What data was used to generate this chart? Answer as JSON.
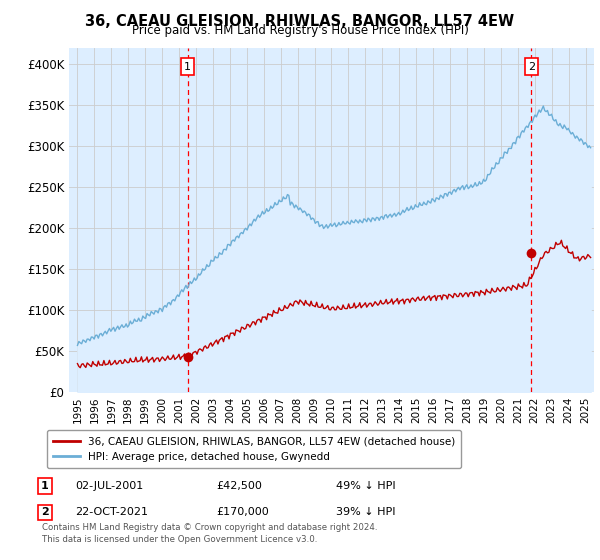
{
  "title": "36, CAEAU GLEISION, RHIWLAS, BANGOR, LL57 4EW",
  "subtitle": "Price paid vs. HM Land Registry's House Price Index (HPI)",
  "ylim": [
    0,
    420000
  ],
  "yticks": [
    0,
    50000,
    100000,
    150000,
    200000,
    250000,
    300000,
    350000,
    400000
  ],
  "ytick_labels": [
    "£0",
    "£50K",
    "£100K",
    "£150K",
    "£200K",
    "£250K",
    "£300K",
    "£350K",
    "£400K"
  ],
  "hpi_color": "#6baed6",
  "hpi_fill_color": "#ddeeff",
  "price_color": "#c00000",
  "vline_color": "#ff0000",
  "background_color": "#ffffff",
  "grid_color": "#cccccc",
  "legend_label_red": "36, CAEAU GLEISION, RHIWLAS, BANGOR, LL57 4EW (detached house)",
  "legend_label_blue": "HPI: Average price, detached house, Gwynedd",
  "annotation1_label": "1",
  "annotation1_date": "02-JUL-2001",
  "annotation1_price": "£42,500",
  "annotation1_pct": "49% ↓ HPI",
  "annotation2_label": "2",
  "annotation2_date": "22-OCT-2021",
  "annotation2_price": "£170,000",
  "annotation2_pct": "39% ↓ HPI",
  "footer": "Contains HM Land Registry data © Crown copyright and database right 2024.\nThis data is licensed under the Open Government Licence v3.0.",
  "sale1_x": 2001.5,
  "sale1_y": 42500,
  "sale2_x": 2021.8,
  "sale2_y": 170000,
  "xmin": 1994.5,
  "xmax": 2025.5
}
